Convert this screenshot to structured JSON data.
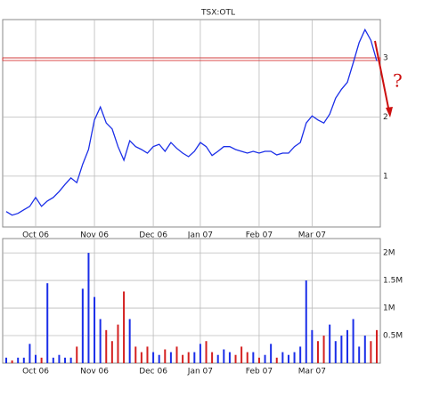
{
  "chart_data": [
    {
      "type": "line",
      "title": "TSX:OTL",
      "color": "#1a2ee8",
      "categories": [
        null,
        null,
        null,
        null,
        null,
        "Oct 06",
        null,
        null,
        null,
        null,
        null,
        null,
        null,
        null,
        null,
        "Nov 06",
        null,
        null,
        null,
        null,
        null,
        null,
        null,
        null,
        null,
        "Dec 06",
        null,
        null,
        null,
        null,
        null,
        null,
        null,
        "Jan 07",
        null,
        null,
        null,
        null,
        null,
        null,
        null,
        null,
        null,
        "Feb 07",
        null,
        null,
        null,
        null,
        null,
        null,
        null,
        null,
        "Mar 07",
        null,
        null,
        null,
        null,
        null,
        null,
        null,
        null,
        null,
        null,
        null
      ],
      "values": [
        0.4,
        0.34,
        0.37,
        0.43,
        0.49,
        0.64,
        0.49,
        0.58,
        0.64,
        0.74,
        0.86,
        0.97,
        0.89,
        1.2,
        1.45,
        1.95,
        2.17,
        1.9,
        1.8,
        1.5,
        1.27,
        1.6,
        1.5,
        1.45,
        1.39,
        1.5,
        1.54,
        1.42,
        1.57,
        1.47,
        1.39,
        1.33,
        1.42,
        1.57,
        1.5,
        1.35,
        1.42,
        1.5,
        1.5,
        1.45,
        1.42,
        1.39,
        1.42,
        1.39,
        1.42,
        1.42,
        1.36,
        1.39,
        1.39,
        1.5,
        1.57,
        1.9,
        2.02,
        1.95,
        1.9,
        2.05,
        2.32,
        2.47,
        2.59,
        2.92,
        3.26,
        3.48,
        3.3,
        2.95
      ],
      "ylim": [
        0.14,
        3.65
      ],
      "yticks": [
        1,
        2,
        3
      ],
      "grid": true,
      "reference_line": {
        "value": 2.98,
        "color": "#d42020"
      },
      "annotation": "?",
      "annotation_color": "#cc1010"
    },
    {
      "type": "bar",
      "up_color": "#1a2ee8",
      "down_color": "#d42020",
      "categories": [
        null,
        null,
        null,
        null,
        null,
        "Oct 06",
        null,
        null,
        null,
        null,
        null,
        null,
        null,
        null,
        null,
        "Nov 06",
        null,
        null,
        null,
        null,
        null,
        null,
        null,
        null,
        null,
        "Dec 06",
        null,
        null,
        null,
        null,
        null,
        null,
        null,
        "Jan 07",
        null,
        null,
        null,
        null,
        null,
        null,
        null,
        null,
        null,
        "Feb 07",
        null,
        null,
        null,
        null,
        null,
        null,
        null,
        null,
        "Mar 07",
        null,
        null,
        null,
        null,
        null,
        null,
        null,
        null,
        null,
        null,
        null
      ],
      "values": [
        100000,
        50000,
        100000,
        100000,
        350000,
        150000,
        100000,
        1450000,
        100000,
        150000,
        100000,
        100000,
        300000,
        1350000,
        2000000,
        1200000,
        800000,
        600000,
        400000,
        700000,
        1300000,
        800000,
        300000,
        200000,
        300000,
        200000,
        150000,
        250000,
        200000,
        300000,
        150000,
        200000,
        200000,
        350000,
        400000,
        200000,
        150000,
        250000,
        200000,
        150000,
        300000,
        200000,
        200000,
        100000,
        150000,
        350000,
        100000,
        200000,
        150000,
        200000,
        300000,
        1500000,
        600000,
        400000,
        500000,
        700000,
        400000,
        500000,
        600000,
        800000,
        300000,
        500000,
        400000,
        600000
      ],
      "ylim": [
        0,
        2260000
      ],
      "yticks": [
        {
          "value": 500000,
          "label": "0.5M"
        },
        {
          "value": 1000000,
          "label": "1M"
        },
        {
          "value": 1500000,
          "label": "1.5M"
        },
        {
          "value": 2000000,
          "label": "2M"
        }
      ],
      "grid": true
    }
  ]
}
